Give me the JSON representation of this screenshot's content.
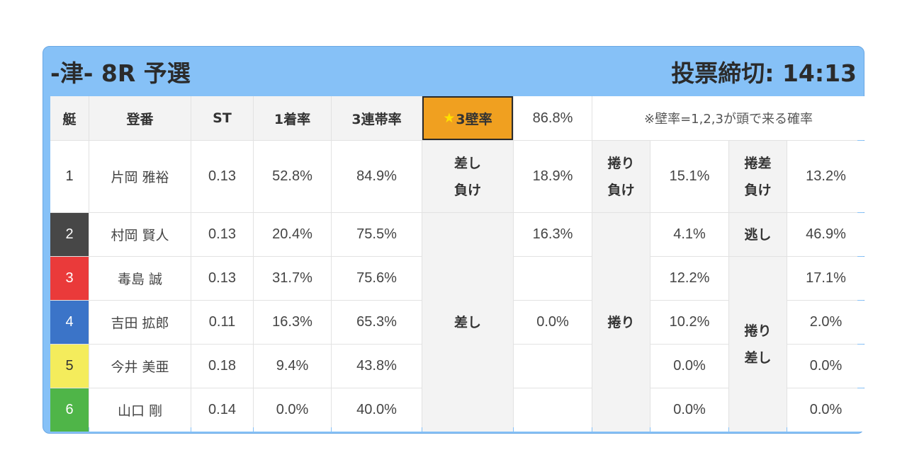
{
  "header": {
    "venue_race": "-津- 8R 予選",
    "deadline": "投票締切: 14:13"
  },
  "table": {
    "headers": {
      "boat": "艇",
      "reg": "登番",
      "st": "ST",
      "first_rate": "1着率",
      "trio_rate": "3連帯率",
      "wall_label": "3壁率",
      "wall_value": "86.8%",
      "note": "※壁率=1,2,3が頭で来る確率"
    },
    "rows": [
      {
        "boat": "1",
        "name": "片岡 雅裕",
        "st": "0.13",
        "first": "52.8%",
        "trio": "84.9%",
        "lane_color": "#ffffff"
      },
      {
        "boat": "2",
        "name": "村岡 賢人",
        "st": "0.13",
        "first": "20.4%",
        "trio": "75.5%",
        "lane_color": "#474747"
      },
      {
        "boat": "3",
        "name": "毒島 誠",
        "st": "0.13",
        "first": "31.7%",
        "trio": "75.6%",
        "lane_color": "#ea3a3a"
      },
      {
        "boat": "4",
        "name": "吉田 拡郎",
        "st": "0.11",
        "first": "16.3%",
        "trio": "65.3%",
        "lane_color": "#3b74c8"
      },
      {
        "boat": "5",
        "name": "今井 美亜",
        "st": "0.18",
        "first": "9.4%",
        "trio": "43.8%",
        "lane_color": "#f4ec5c"
      },
      {
        "boat": "6",
        "name": "山口 剛",
        "st": "0.14",
        "first": "0.0%",
        "trio": "40.0%",
        "lane_color": "#4fb548"
      }
    ],
    "kimarite": {
      "sashi_make": {
        "label": "差し\n負け",
        "value": "18.9%"
      },
      "makuri_make": {
        "label": "捲り\n負け",
        "value": "15.1%"
      },
      "makurisashi_make": {
        "label": "捲差\n負け",
        "value": "13.2%"
      },
      "nige": {
        "label": "逃し",
        "value": "46.9%"
      },
      "sashi": {
        "label": "差し",
        "values": [
          "16.3%",
          "",
          "0.0%",
          "",
          ""
        ]
      },
      "makuri": {
        "label": "捲り",
        "values": [
          "4.1%",
          "12.2%",
          "10.2%",
          "0.0%",
          "0.0%"
        ]
      },
      "makurisashi": {
        "label": "捲り\n差し",
        "values": [
          "17.1%",
          "2.0%",
          "0.0%",
          "0.0%"
        ]
      }
    }
  },
  "colors": {
    "card_bg": "#86c1f7",
    "highlight": "#f0a020",
    "star": "#ffe000"
  }
}
